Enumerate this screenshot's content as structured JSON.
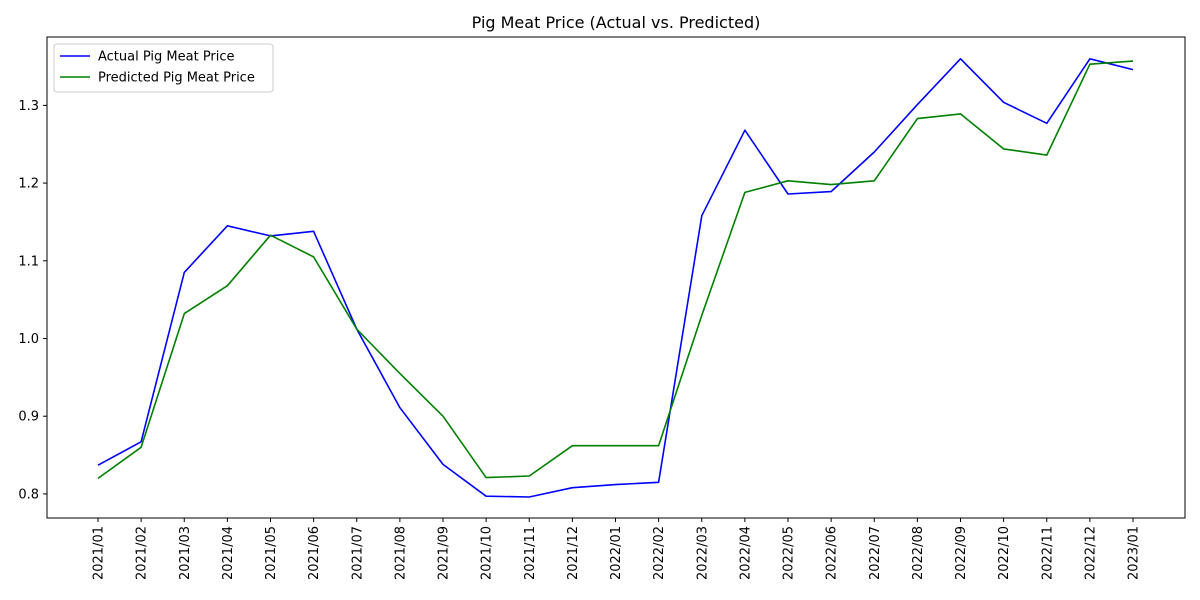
{
  "chart_data": {
    "type": "line",
    "title": "Pig Meat Price (Actual vs. Predicted)",
    "xlabel": "",
    "ylabel": "",
    "categories": [
      "2021/01",
      "2021/02",
      "2021/03",
      "2021/04",
      "2021/05",
      "2021/06",
      "2021/07",
      "2021/08",
      "2021/09",
      "2021/10",
      "2021/11",
      "2021/12",
      "2022/01",
      "2022/02",
      "2022/03",
      "2022/04",
      "2022/05",
      "2022/06",
      "2022/07",
      "2022/08",
      "2022/09",
      "2022/10",
      "2022/11",
      "2022/12",
      "2023/01"
    ],
    "series": [
      {
        "name": "Actual Pig Meat Price",
        "color": "#0000ff",
        "values": [
          0.837,
          0.867,
          1.085,
          1.145,
          1.132,
          1.138,
          1.012,
          0.911,
          0.838,
          0.797,
          0.796,
          0.808,
          0.812,
          0.815,
          1.158,
          1.268,
          1.186,
          1.189,
          1.24,
          1.301,
          1.36,
          1.304,
          1.277,
          1.36,
          1.346
        ]
      },
      {
        "name": "Predicted Pig Meat Price",
        "color": "#008000",
        "values": [
          0.82,
          0.86,
          1.032,
          1.068,
          1.133,
          1.105,
          1.012,
          0.955,
          0.9,
          0.821,
          0.823,
          0.862,
          0.862,
          0.862,
          1.03,
          1.188,
          1.203,
          1.198,
          1.203,
          1.283,
          1.289,
          1.244,
          1.236,
          1.353,
          1.357
        ]
      }
    ],
    "yticks": [
      "0.8",
      "0.9",
      "1.0",
      "1.1",
      "1.2",
      "1.3"
    ],
    "ylim": [
      0.769,
      1.388
    ],
    "grid": false,
    "legend_position": "top-left"
  }
}
